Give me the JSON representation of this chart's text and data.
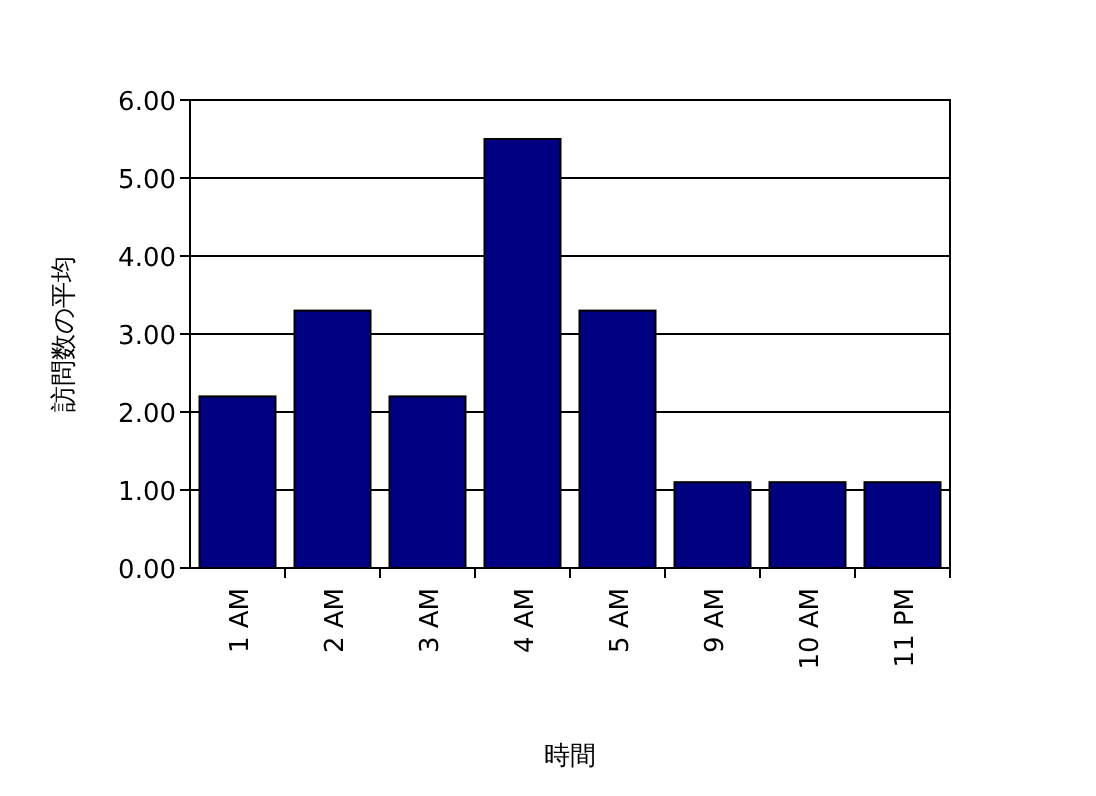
{
  "chart_data": {
    "type": "bar",
    "xlabel": "時間",
    "ylabel": "訪問数の平均",
    "categories": [
      "1 AM",
      "2 AM",
      "3 AM",
      "4 AM",
      "5 AM",
      "9 AM",
      "10 AM",
      "11 PM"
    ],
    "values": [
      2.2,
      3.3,
      2.2,
      5.5,
      3.3,
      1.1,
      1.1,
      1.1
    ],
    "color": "#000080",
    "ylim": [
      0,
      6
    ],
    "yticks": [
      {
        "value": 0,
        "label": "0.00"
      },
      {
        "value": 1,
        "label": "1.00"
      },
      {
        "value": 2,
        "label": "2.00"
      },
      {
        "value": 3,
        "label": "3.00"
      },
      {
        "value": 4,
        "label": "4.00"
      },
      {
        "value": 5,
        "label": "5.00"
      },
      {
        "value": 6,
        "label": "6.00"
      }
    ],
    "grid": "y"
  }
}
